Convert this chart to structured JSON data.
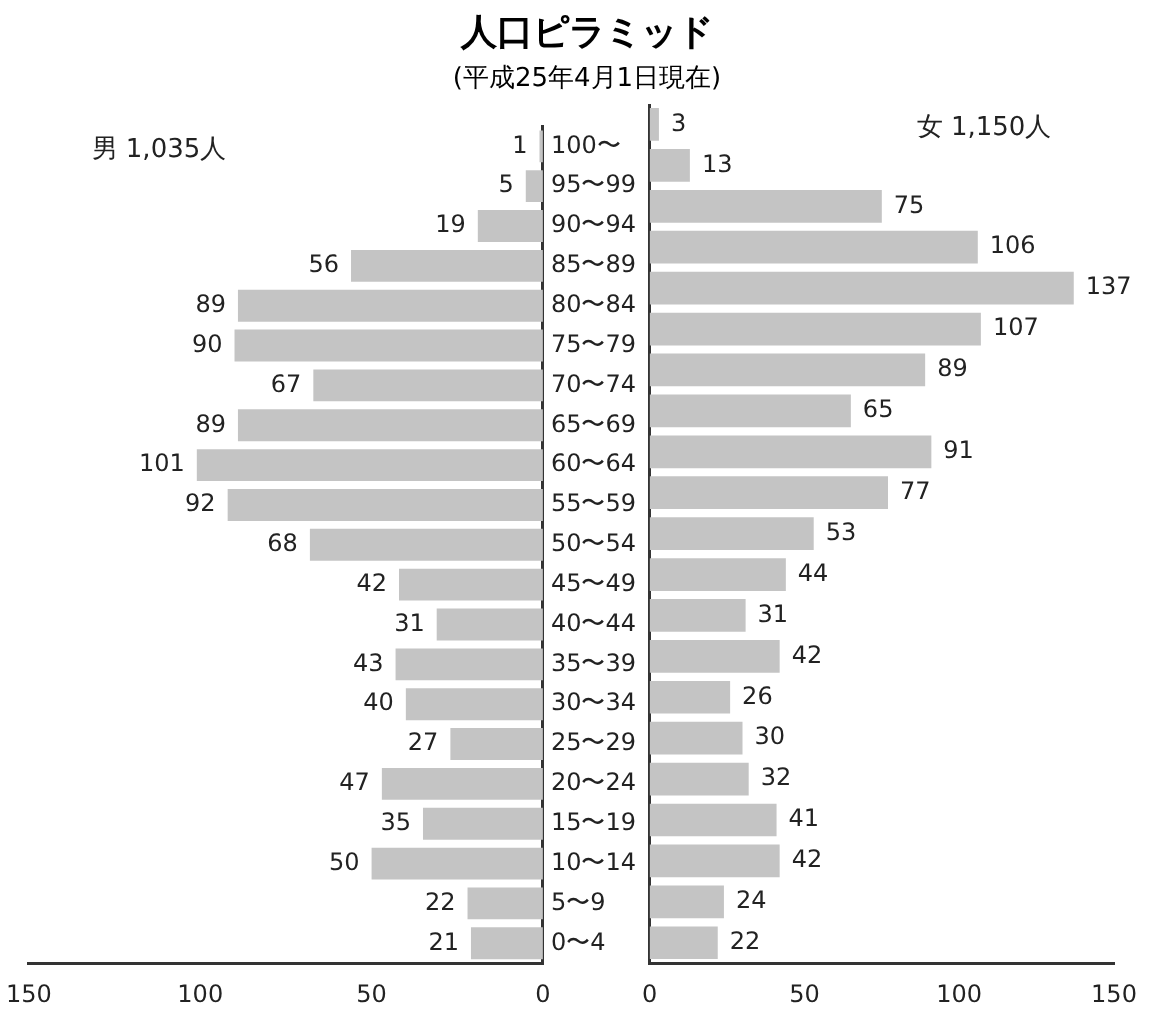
{
  "chart_data": [
    {
      "type": "bar",
      "orientation": "horizontal",
      "title": "人口ピラミッド",
      "subtitle": "(平成25年4月1日現在)",
      "annotations": [
        "男 1,035人"
      ],
      "categories": [
        "100〜",
        "95〜99",
        "90〜94",
        "85〜89",
        "80〜84",
        "75〜79",
        "70〜74",
        "65〜69",
        "60〜64",
        "55〜59",
        "50〜54",
        "45〜49",
        "40〜44",
        "35〜39",
        "30〜34",
        "25〜29",
        "20〜24",
        "15〜19",
        "10〜14",
        "5〜9",
        "0〜4"
      ],
      "values": [
        1,
        5,
        19,
        56,
        89,
        90,
        67,
        89,
        101,
        92,
        68,
        42,
        31,
        43,
        40,
        27,
        47,
        35,
        50,
        22,
        21
      ],
      "color": "#c4c4c4",
      "xlim": [
        150,
        0
      ],
      "xticks": [
        150,
        100,
        50,
        0
      ],
      "data_labels": true
    },
    {
      "type": "bar",
      "orientation": "horizontal",
      "annotations": [
        "女 1,150人"
      ],
      "categories": [
        null,
        null,
        null,
        null,
        null,
        null,
        null,
        null,
        null,
        null,
        null,
        null,
        null,
        null,
        null,
        null,
        null,
        null,
        null,
        null,
        null
      ],
      "values": [
        3,
        13,
        75,
        106,
        137,
        107,
        89,
        65,
        91,
        77,
        53,
        44,
        31,
        42,
        26,
        30,
        32,
        41,
        42,
        24,
        22
      ],
      "color": "#c4c4c4",
      "xlim": [
        0,
        150
      ],
      "xticks": [
        0,
        50,
        100,
        150
      ],
      "data_labels": true,
      "tick_labels": "x"
    }
  ]
}
